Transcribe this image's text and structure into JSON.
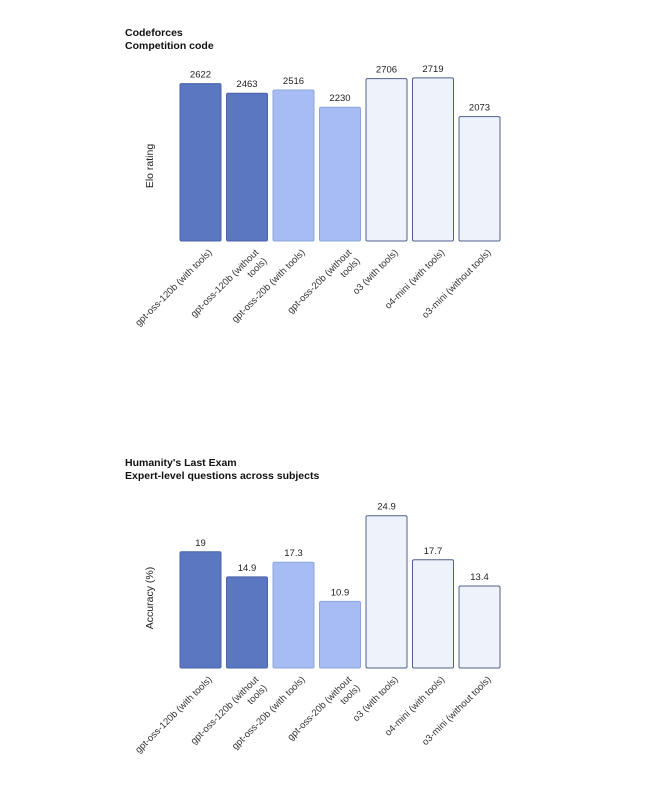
{
  "chart_data": [
    {
      "type": "bar",
      "title": "Codeforces",
      "subtitle": "Competition code",
      "xlabel": "",
      "ylabel": "Elo rating",
      "categories": [
        "gpt-oss-120b (with tools)",
        "gpt-oss-120b (without tools)",
        "gpt-oss-20b (with tools)",
        "gpt-oss-20b (without tools)",
        "o3 (with tools)",
        "o4-mini (with tools)",
        "o3-mini (without tools)"
      ],
      "tick_lines": [
        [
          "gpt-oss-120b (with tools)"
        ],
        [
          "gpt-oss-120b (without",
          "tools)"
        ],
        [
          "gpt-oss-20b (with tools)"
        ],
        [
          "gpt-oss-20b (without",
          "tools)"
        ],
        [
          "o3 (with tools)"
        ],
        [
          "o4-mini (with tools)"
        ],
        [
          "o3-mini (without tools)"
        ]
      ],
      "values": [
        2622,
        2463,
        2516,
        2230,
        2706,
        2719,
        2073
      ],
      "value_labels": [
        "2622",
        "2463",
        "2516",
        "2230",
        "2706",
        "2719",
        "2073"
      ],
      "ylim": [
        0,
        2800
      ],
      "grid": false,
      "colors": [
        "#5b77c2",
        "#5b77c2",
        "#a7bcf2",
        "#a7bcf2",
        "#eef2fb",
        "#eef2fb",
        "#eef2fb"
      ]
    },
    {
      "type": "bar",
      "title": "Humanity's Last Exam",
      "subtitle": "Expert-level questions across subjects",
      "xlabel": "",
      "ylabel": "Accuracy (%)",
      "categories": [
        "gpt-oss-120b (with tools)",
        "gpt-oss-120b (without tools)",
        "gpt-oss-20b (with tools)",
        "gpt-oss-20b (without tools)",
        "o3 (with tools)",
        "o4-mini (with tools)",
        "o3-mini (without tools)"
      ],
      "tick_lines": [
        [
          "gpt-oss-120b (with tools)"
        ],
        [
          "gpt-oss-120b (without",
          "tools)"
        ],
        [
          "gpt-oss-20b (with tools)"
        ],
        [
          "gpt-oss-20b (without",
          "tools)"
        ],
        [
          "o3 (with tools)"
        ],
        [
          "o4-mini (with tools)"
        ],
        [
          "o3-mini (without tools)"
        ]
      ],
      "values": [
        19,
        14.9,
        17.3,
        10.9,
        24.9,
        17.7,
        13.4
      ],
      "value_labels": [
        "19",
        "14.9",
        "17.3",
        "10.9",
        "24.9",
        "17.7",
        "13.4"
      ],
      "ylim": [
        0,
        26
      ],
      "grid": false,
      "colors": [
        "#5b77c2",
        "#5b77c2",
        "#a7bcf2",
        "#a7bcf2",
        "#eef2fb",
        "#eef2fb",
        "#eef2fb"
      ]
    }
  ]
}
